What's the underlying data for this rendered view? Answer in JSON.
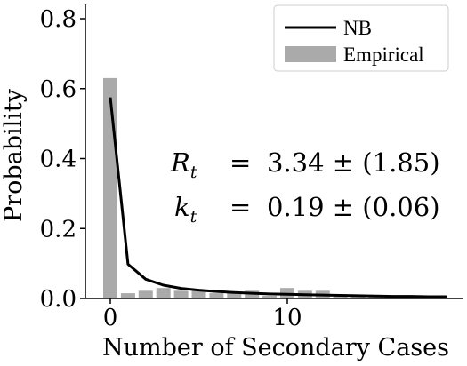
{
  "chart_data": {
    "type": "bar",
    "xlabel": "Number of Secondary Cases",
    "ylabel": "Probability",
    "xlim": [
      -1,
      20
    ],
    "ylim": [
      0,
      0.84
    ],
    "xticks": [
      0,
      10
    ],
    "yticks": [
      0.0,
      0.2,
      0.4,
      0.6,
      0.8
    ],
    "xtick_labels": [
      "0",
      "10"
    ],
    "ytick_labels": [
      "0.0",
      "0.2",
      "0.4",
      "0.6",
      "0.8"
    ],
    "grid": false,
    "legend_position": "top-right",
    "series": [
      {
        "name": "NB",
        "kind": "line",
        "color": "#000000",
        "x": [
          0,
          1,
          2,
          3,
          4,
          5,
          6,
          7,
          8,
          9,
          10,
          11,
          12,
          13,
          14,
          15,
          16,
          17,
          18,
          19
        ],
        "values": [
          0.575,
          0.098,
          0.055,
          0.038,
          0.029,
          0.024,
          0.02,
          0.017,
          0.015,
          0.013,
          0.012,
          0.011,
          0.01,
          0.009,
          0.008,
          0.007,
          0.006,
          0.006,
          0.005,
          0.005
        ]
      },
      {
        "name": "Empirical",
        "kind": "bar",
        "color": "#aaaaaa",
        "x": [
          0,
          1,
          2,
          3,
          4,
          5,
          6,
          7,
          8,
          9,
          10,
          11,
          12,
          13,
          14,
          15,
          16,
          17,
          18,
          19
        ],
        "values": [
          0.63,
          0.015,
          0.022,
          0.03,
          0.022,
          0.022,
          0.015,
          0.015,
          0.022,
          0.008,
          0.03,
          0.022,
          0.022,
          0.008,
          0.008,
          0.008,
          0.0,
          0.0,
          0.008,
          0.0
        ]
      }
    ],
    "annotations": [
      {
        "symbol": "R",
        "subscript": "t",
        "relation": "=",
        "value": "3.34 ± (1.85)"
      },
      {
        "symbol": "k",
        "subscript": "t",
        "relation": "=",
        "value": "0.19 ± (0.06)"
      }
    ]
  }
}
